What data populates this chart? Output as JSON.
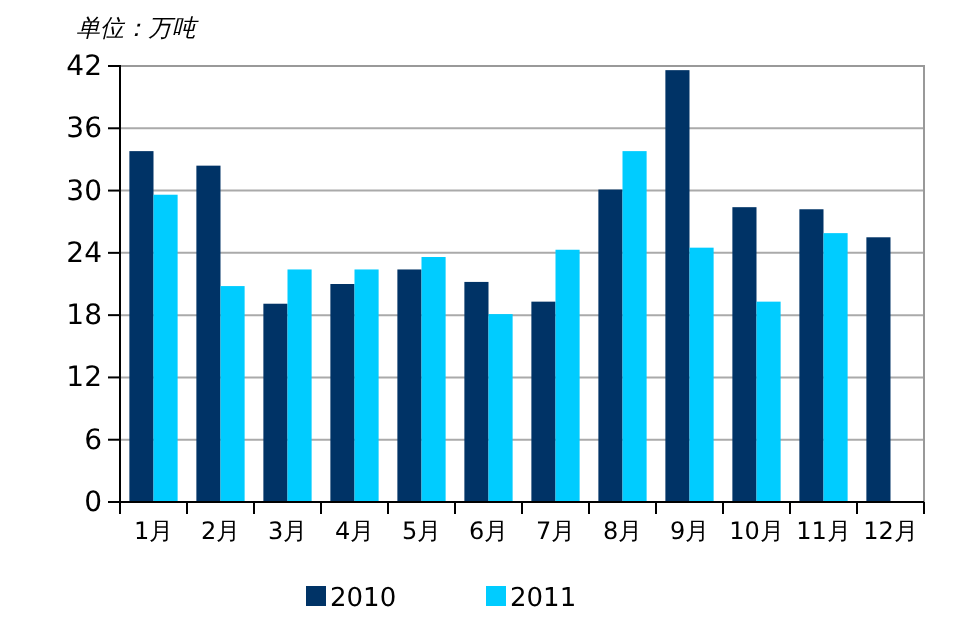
{
  "chart_data": {
    "type": "bar",
    "ylabel": "单位：万吨",
    "categories": [
      "1月",
      "2月",
      "3月",
      "4月",
      "5月",
      "6月",
      "7月",
      "8月",
      "9月",
      "10月",
      "11月",
      "12月"
    ],
    "series": [
      {
        "name": "2010",
        "color": "#003366",
        "values": [
          33.8,
          32.4,
          19.1,
          21.0,
          22.4,
          21.2,
          19.3,
          30.1,
          41.6,
          28.4,
          28.2,
          25.5
        ]
      },
      {
        "name": "2011",
        "color": "#00ccff",
        "values": [
          29.6,
          20.8,
          22.4,
          22.4,
          23.6,
          18.1,
          24.3,
          33.8,
          24.5,
          19.3,
          25.9,
          null
        ]
      }
    ],
    "ylim": [
      0,
      42
    ],
    "yticks": [
      0,
      6,
      12,
      18,
      24,
      30,
      36,
      42
    ],
    "grid": "y",
    "legend": "bottom"
  }
}
